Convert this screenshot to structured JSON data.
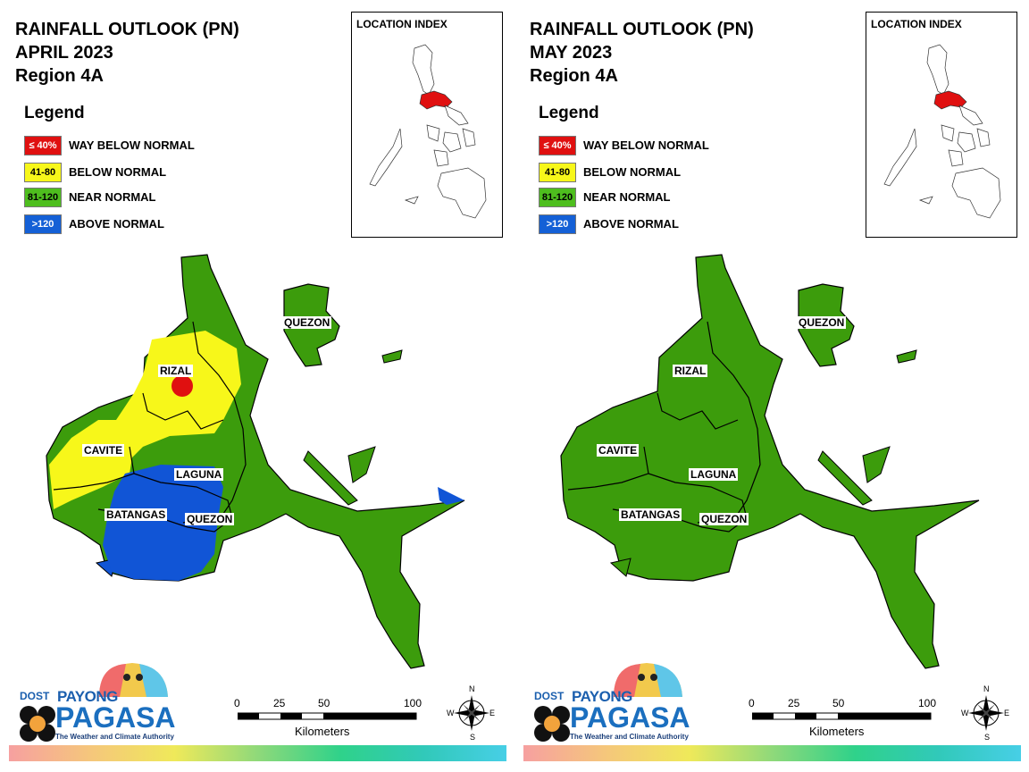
{
  "panels": [
    {
      "id": "april",
      "title_line1": "RAINFALL OUTLOOK (PN)",
      "title_line2": "APRIL 2023",
      "title_line3": "Region 4A",
      "provinces": {
        "rizal": "RIZAL",
        "cavite": "CAVITE",
        "laguna": "LAGUNA",
        "batangas": "BATANGAS",
        "quezon_main": "QUEZON",
        "quezon_north": "QUEZON"
      },
      "province_categories": {
        "rizal": [
          "below_normal",
          "way_below_normal"
        ],
        "cavite": [
          "below_normal",
          "near_normal"
        ],
        "laguna": [
          "above_normal",
          "below_normal",
          "near_normal"
        ],
        "batangas": [
          "above_normal",
          "below_normal",
          "near_normal"
        ],
        "quezon": [
          "near_normal",
          "above_normal"
        ]
      }
    },
    {
      "id": "may",
      "title_line1": "RAINFALL OUTLOOK (PN)",
      "title_line2": "MAY 2023",
      "title_line3": "Region 4A",
      "provinces": {
        "rizal": "RIZAL",
        "cavite": "CAVITE",
        "laguna": "LAGUNA",
        "batangas": "BATANGAS",
        "quezon_main": "QUEZON",
        "quezon_north": "QUEZON"
      },
      "province_categories": {
        "rizal": [
          "near_normal"
        ],
        "cavite": [
          "near_normal"
        ],
        "laguna": [
          "near_normal"
        ],
        "batangas": [
          "near_normal"
        ],
        "quezon": [
          "near_normal"
        ]
      }
    }
  ],
  "legend": {
    "title": "Legend",
    "items": [
      {
        "range": "≤ 40%",
        "label": "WAY BELOW NORMAL",
        "color": "#e01010",
        "text_color": "#ffffff"
      },
      {
        "range": "41-80",
        "label": "BELOW NORMAL",
        "color": "#f7f71a",
        "text_color": "#000000"
      },
      {
        "range": "81-120",
        "label": "NEAR NORMAL",
        "color": "#4ebe1e",
        "text_color": "#000000"
      },
      {
        "range": ">120",
        "label": "ABOVE NORMAL",
        "color": "#1460d6",
        "text_color": "#ffffff"
      }
    ]
  },
  "inset": {
    "title": "LOCATION INDEX",
    "highlight_color": "#e01010"
  },
  "scale_bar": {
    "ticks": [
      "0",
      "25",
      "50",
      "100"
    ],
    "units": "Kilometers"
  },
  "compass": {
    "n": "N",
    "e": "E",
    "s": "S",
    "w": "W"
  },
  "logo": {
    "dost": "DOST",
    "payong": "PAYONG",
    "pagasa": "PAGASA",
    "tagline": "The Weather and Climate Authority"
  },
  "colors": {
    "map_green": "#3c9c0c",
    "map_yellow": "#f7f71a",
    "map_blue": "#1155d6",
    "map_red": "#e01010",
    "outline": "#000000"
  }
}
